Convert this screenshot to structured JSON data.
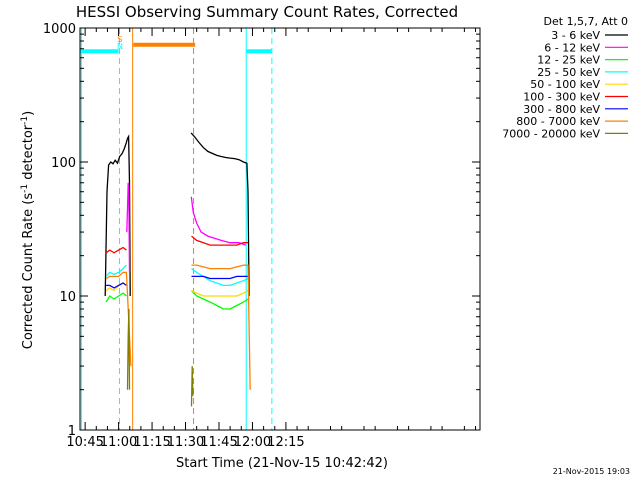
{
  "chart_data": {
    "type": "line",
    "title": "HESSI Observing Summary Count Rates, Corrected",
    "xlabel": "Start Time (21-Nov-15 10:42:42)",
    "ylabel_main": "Corrected Count Rate (s",
    "ylabel_sup1": "-1",
    "ylabel_mid": " detector",
    "ylabel_sup2": "-1",
    "ylabel_end": ")",
    "yscale": "log",
    "ylim": [
      1,
      1000
    ],
    "xlim_min": [
      42.7,
      222
    ],
    "x_tick_minutes": [
      45,
      60,
      75,
      90,
      105,
      120,
      135
    ],
    "x_tick_labels": [
      "10:45",
      "11:00",
      "11:15",
      "11:30",
      "11:45",
      "12:00",
      "12:15"
    ],
    "y_tick_values": [
      1,
      10,
      100,
      1000
    ],
    "y_tick_labels": [
      "1",
      "10",
      "100",
      "1000"
    ],
    "legend_title": "Det 1,5,7, Att 0",
    "legend_placement": "right",
    "timestamp": "21-Nov-2015 19:03",
    "flag_labels": [
      {
        "text": "S",
        "color": "#ff8000",
        "minute": 60.6
      },
      {
        "text": "N",
        "color": "#00ffff",
        "minute": 60.6
      }
    ],
    "saa_bars": [
      {
        "color": "#ff8000",
        "start": 66.6,
        "end": 94.3,
        "value": 750
      },
      {
        "color": "#00ffff",
        "start": 42.8,
        "end": 60.0,
        "value": 670
      },
      {
        "color": "#00ffff",
        "start": 117.4,
        "end": 128.5,
        "value": 670
      }
    ],
    "vlines": [
      {
        "minute": 43.3,
        "color": "#00ffff",
        "dashed": false
      },
      {
        "minute": 60.4,
        "color": "#00ffff",
        "dashed": true
      },
      {
        "minute": 66.3,
        "color": "#ff8000",
        "dashed": false
      },
      {
        "minute": 93.6,
        "color": "#ff8000",
        "dashed": true
      },
      {
        "minute": 117.2,
        "color": "#00ffff",
        "dashed": false
      },
      {
        "minute": 128.7,
        "color": "#00ffff",
        "dashed": true
      }
    ],
    "series": [
      {
        "name": "3 - 6 keV",
        "color": "#000000",
        "segments": [
          {
            "x": [
              54.0,
              54.8,
              55.5,
              56.5,
              57.5,
              58.5,
              59.5,
              60.5,
              61.5,
              62.5,
              63.5,
              64.0,
              64.5,
              64.9,
              65.2
            ],
            "y": [
              10,
              60,
              95,
              100,
              97,
              103,
              98,
              110,
              115,
              125,
              140,
              150,
              155,
              70,
              10
            ]
          },
          {
            "x": [
              92.5,
              94.0,
              96.0,
              98.0,
              100.0,
              102.0,
              104.0,
              106.0,
              108.0,
              110.0,
              112.0,
              114.0,
              116.0,
              117.5,
              118.0,
              118.5
            ],
            "y": [
              165,
              155,
              140,
              128,
              120,
              116,
              112,
              110,
              108,
              107,
              106,
              104,
              100,
              98,
              60,
              10
            ]
          }
        ]
      },
      {
        "name": "6 - 12 keV",
        "color": "#ff00ff",
        "segments": [
          {
            "x": [
              63.7,
              64.0,
              64.3,
              64.6,
              64.9
            ],
            "y": [
              30,
              45,
              70,
              50,
              15
            ]
          },
          {
            "x": [
              92.6,
              93.5,
              95.0,
              97.0,
              100.0,
              103.0,
              106.0,
              110.0,
              114.0,
              117.0
            ],
            "y": [
              55,
              42,
              35,
              30,
              28,
              27,
              26,
              25,
              25,
              24
            ]
          }
        ]
      },
      {
        "name": "12 - 25 keV",
        "color": "#00ff00",
        "segments": [
          {
            "x": [
              54.4,
              56.0,
              58.0,
              60.0,
              62.0,
              63.5
            ],
            "y": [
              9,
              10,
              9.5,
              10,
              10.5,
              10
            ]
          },
          {
            "x": [
              92.7,
              95.0,
              98.0,
              101.0,
              104.0,
              107.0,
              110.0,
              113.0,
              116.0,
              118.0
            ],
            "y": [
              11,
              10,
              9.5,
              9,
              8.5,
              8,
              8,
              8.5,
              9,
              9.5
            ]
          }
        ]
      },
      {
        "name": "25 - 50 keV",
        "color": "#00ffff",
        "segments": [
          {
            "x": [
              54.4,
              56.0,
              58.0,
              60.0,
              62.0,
              63.5
            ],
            "y": [
              14,
              15,
              14.5,
              15,
              16,
              17
            ]
          },
          {
            "x": [
              92.7,
              95.0,
              98.0,
              101.0,
              104.0,
              107.0,
              110.0,
              113.0,
              116.0,
              118.0
            ],
            "y": [
              16,
              15,
              14,
              13,
              12.5,
              12,
              12,
              12.5,
              13,
              13.5
            ]
          }
        ]
      },
      {
        "name": "50 - 100 keV",
        "color": "#ffd700",
        "segments": [
          {
            "x": [
              54.4,
              56.0,
              58.0,
              60.0,
              62.0,
              63.5
            ],
            "y": [
              11,
              11.5,
              11,
              12,
              12.5,
              12
            ]
          },
          {
            "x": [
              92.7,
              95.0,
              98.0,
              101.0,
              104.0,
              107.0,
              110.0,
              113.0,
              116.0,
              118.0
            ],
            "y": [
              11,
              10.5,
              10,
              10,
              10,
              10,
              10,
              10,
              10.5,
              11
            ]
          }
        ]
      },
      {
        "name": "100 - 300 keV",
        "color": "#ff0000",
        "segments": [
          {
            "x": [
              54.4,
              56.0,
              58.0,
              60.0,
              62.0,
              63.5
            ],
            "y": [
              21,
              22,
              21,
              22,
              23,
              22
            ]
          },
          {
            "x": [
              92.7,
              95.0,
              98.0,
              101.0,
              104.0,
              107.0,
              110.0,
              113.0,
              116.0,
              118.0
            ],
            "y": [
              28,
              26,
              25,
              24,
              24,
              24,
              24,
              24,
              25,
              25
            ]
          }
        ]
      },
      {
        "name": "300 - 800 keV",
        "color": "#0000ff",
        "segments": [
          {
            "x": [
              54.4,
              56.0,
              58.0,
              60.0,
              62.0,
              63.5
            ],
            "y": [
              12,
              12,
              11.5,
              12,
              12.5,
              12
            ]
          },
          {
            "x": [
              92.7,
              95.0,
              98.0,
              101.0,
              104.0,
              107.0,
              110.0,
              113.0,
              116.0,
              118.0
            ],
            "y": [
              14,
              14,
              14,
              13.5,
              13.5,
              13.5,
              13.5,
              14,
              14,
              14
            ]
          }
        ]
      },
      {
        "name": "800 - 7000 keV",
        "color": "#ff8000",
        "segments": [
          {
            "x": [
              54.4,
              56.0,
              58.0,
              60.0,
              62.0,
              63.5,
              64.5,
              65.5
            ],
            "y": [
              13.5,
              14,
              14,
              14,
              15,
              15,
              7,
              3
            ]
          },
          {
            "x": [
              92.7,
              95.0,
              98.0,
              101.0,
              104.0,
              107.0,
              110.0,
              113.0,
              116.0,
              118.0,
              119.0
            ],
            "y": [
              17,
              17,
              16.5,
              16,
              16,
              16,
              16,
              16.5,
              17,
              17,
              2
            ]
          }
        ]
      },
      {
        "name": "7000 - 20000 keV",
        "color": "#808000",
        "segments": [
          {
            "x": [
              64.0,
              64.3,
              64.6,
              64.9
            ],
            "y": [
              2,
              5,
              8,
              2
            ]
          },
          {
            "x": [
              92.7,
              93.0,
              93.3
            ],
            "y": [
              1.5,
              3,
              1.8
            ]
          }
        ]
      }
    ]
  }
}
